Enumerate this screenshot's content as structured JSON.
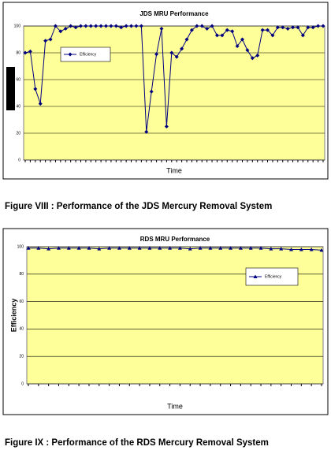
{
  "chart_data": [
    {
      "type": "line",
      "title": "JDS MRU Performance",
      "x_label": "Time",
      "categories": [
        null,
        null,
        null,
        null,
        null,
        null,
        null,
        null,
        null,
        null,
        null,
        null,
        null,
        null,
        null,
        null,
        null,
        null,
        null,
        null,
        null,
        null,
        null,
        null,
        null,
        null,
        null,
        null,
        null,
        null,
        null,
        null,
        null,
        null,
        null,
        null,
        null,
        null,
        null,
        null,
        null,
        null,
        null,
        null,
        null,
        null,
        null,
        null,
        null,
        null,
        null,
        null,
        null,
        null,
        null,
        null,
        null,
        null,
        null,
        null
      ],
      "series": [
        {
          "name": "Efficiency",
          "color": "#000080",
          "marker": "diamond",
          "values": [
            80,
            81,
            53,
            42,
            89,
            90,
            100,
            96,
            98,
            100,
            99,
            100,
            100,
            100,
            100,
            100,
            100,
            100,
            100,
            99,
            100,
            100,
            100,
            100,
            21,
            51,
            79,
            98,
            25,
            80,
            77,
            83,
            90,
            97,
            100,
            100,
            98,
            100,
            93,
            93,
            97,
            96,
            85,
            90,
            82,
            76,
            78,
            97,
            97,
            93,
            99,
            99,
            98,
            99,
            99,
            93,
            99,
            99,
            100,
            100
          ]
        }
      ],
      "ylim": [
        0,
        100
      ],
      "yticks": [
        0,
        20,
        40,
        60,
        80,
        100
      ],
      "grid": true,
      "legend": "upper left"
    },
    {
      "type": "line",
      "title": "RDS MRU Performance",
      "x_label": "Time",
      "y_label": "Efficiency",
      "categories": [
        null,
        null,
        null,
        null,
        null,
        null,
        null,
        null,
        null,
        null,
        null,
        null,
        null,
        null,
        null,
        null,
        null,
        null,
        null,
        null,
        null,
        null,
        null,
        null,
        null,
        null,
        null,
        null,
        null,
        null
      ],
      "series": [
        {
          "name": "Efficiency",
          "color": "#000080",
          "marker": "triangle",
          "values": [
            99,
            99,
            98.5,
            99,
            99,
            99,
            99,
            98.5,
            99,
            99,
            99,
            99,
            99,
            99,
            99,
            99,
            98.5,
            99,
            99,
            99,
            99,
            99,
            99,
            99,
            98.5,
            98.5,
            98,
            98,
            98,
            97.5
          ]
        }
      ],
      "ylim": [
        0,
        100
      ],
      "yticks": [
        0,
        20,
        40,
        60,
        80,
        100
      ],
      "grid": true,
      "legend": "upper right"
    }
  ],
  "captions": [
    "Figure VIII : Performance of the JDS Mercury Removal System",
    "Figure  IX : Performance of the RDS Mercury Removal System"
  ]
}
